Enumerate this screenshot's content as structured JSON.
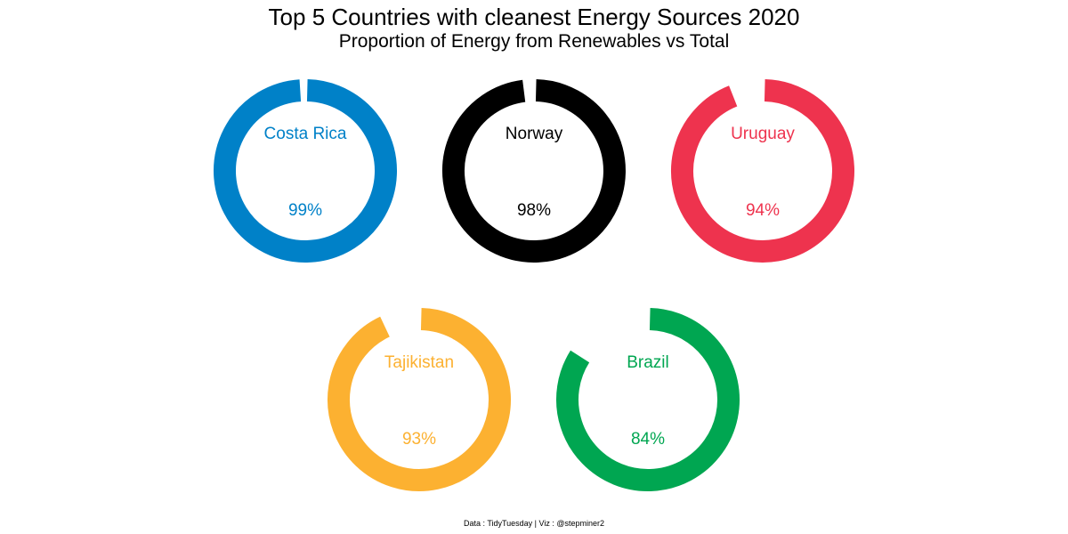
{
  "header": {
    "title": "Top 5 Countries with cleanest Energy Sources 2020",
    "subtitle": "Proportion of Energy from Renewables vs Total"
  },
  "footer": {
    "caption": "Data : TidyTuesday | Viz : @stepminer2"
  },
  "chart_data": {
    "type": "donut",
    "title": "Top 5 Countries with cleanest Energy Sources 2020",
    "subtitle": "Proportion of Energy from Renewables vs Total",
    "value_unit": "%",
    "ylim": [
      0,
      100
    ],
    "categories": [
      "Costa Rica",
      "Norway",
      "Uruguay",
      "Tajikistan",
      "Brazil"
    ],
    "values": [
      99,
      98,
      94,
      93,
      84
    ],
    "labels": [
      "99%",
      "98%",
      "94%",
      "93%",
      "84%"
    ],
    "colors": [
      "#0081C8",
      "#000000",
      "#EE334E",
      "#FCB131",
      "#00A651"
    ],
    "legend": "none",
    "grid": false
  }
}
